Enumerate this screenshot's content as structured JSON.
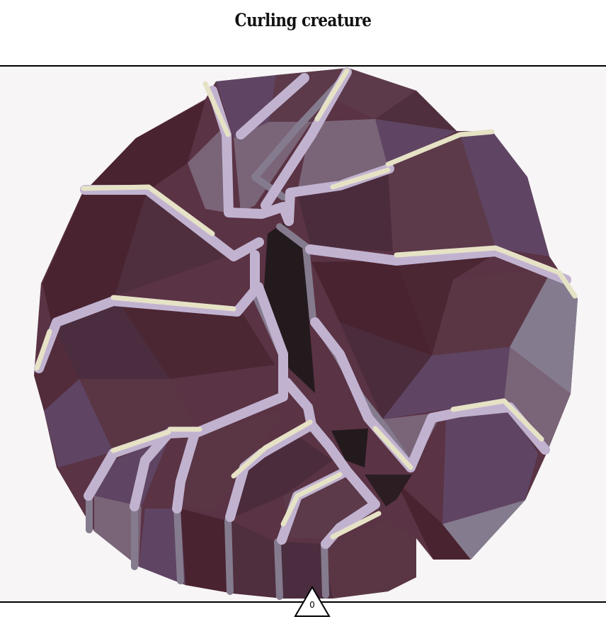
{
  "title": "Curling creature",
  "counter": "0",
  "palette": {
    "background": "#f7f5f6",
    "rule": "#000000",
    "dark_void": "#231a1e",
    "maroon": "#4a2430",
    "plum": "#5c3a4a",
    "mauve": "#7a6478",
    "grey_violet": "#8a7e90",
    "lavender": "#c1b3d0",
    "cream": "#e6e2c6"
  },
  "icons": {
    "marker": "triangle-outline-icon"
  }
}
